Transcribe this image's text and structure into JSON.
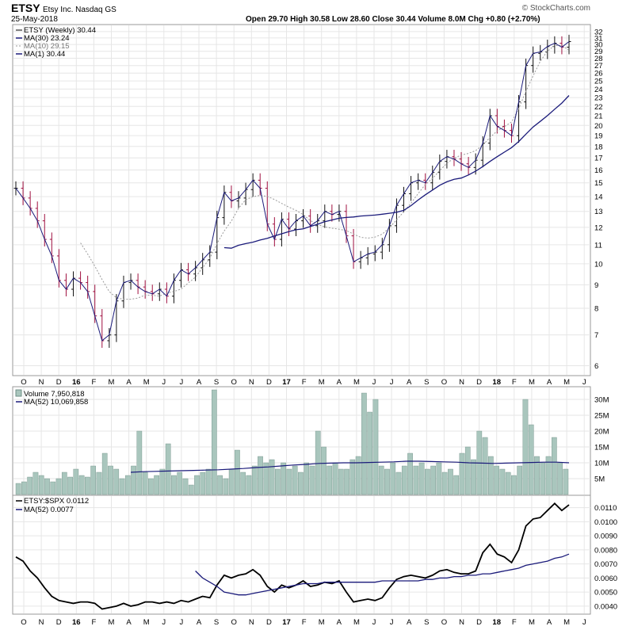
{
  "header": {
    "symbol": "ETSY",
    "company": "Etsy Inc.  Nasdaq GS",
    "date": "25-May-2018",
    "brand": "© StockCharts.com",
    "ohlc": "Open 29.70   High 30.58   Low 28.60   Close 30.44   Volume 8.0M   Chg +0.80 (+2.70%)"
  },
  "colors": {
    "ma": "#1a1a7a",
    "ma_dotted": "#9a9a9a",
    "up": "#111111",
    "down": "#a01040",
    "volume_fill": "#a9c6bd",
    "volume_stroke": "#6f8f86",
    "grid": "#e6e6e6"
  },
  "chart_data": [
    {
      "type": "line",
      "title": "ETSY (Weekly) 30.44",
      "legend": [
        "MA(30) 23.24",
        "MA(10) 29.15",
        "MA(1) 30.44"
      ],
      "x_tick_labels": [
        "O",
        "N",
        "D",
        "16",
        "F",
        "M",
        "A",
        "M",
        "J",
        "J",
        "A",
        "S",
        "O",
        "N",
        "D",
        "17",
        "F",
        "M",
        "A",
        "M",
        "J",
        "J",
        "A",
        "S",
        "O",
        "N",
        "D",
        "18",
        "F",
        "M",
        "A",
        "M",
        "J"
      ],
      "y_ticks": [
        6,
        7,
        8,
        9,
        10,
        11,
        12,
        13,
        14,
        15,
        16,
        17,
        18,
        19,
        20,
        21,
        22,
        23,
        24,
        25,
        26,
        27,
        28,
        29,
        30,
        31,
        32
      ],
      "ylim": [
        5.8,
        32.5
      ],
      "y_scale": "log",
      "grid": true,
      "series": [
        {
          "values": [
            14.6,
            13.9,
            13.2,
            12.4,
            11.3,
            10.4,
            9.2,
            8.8,
            9.3,
            9.1,
            8.7,
            7.7,
            6.8,
            7.0,
            8.3,
            9.1,
            9.2,
            8.9,
            8.7,
            8.6,
            8.8,
            8.5,
            9.2,
            9.7,
            9.5,
            9.8,
            10.2,
            10.6,
            12.6,
            14.3,
            13.7,
            13.9,
            14.5,
            15.2,
            14.6,
            12.2,
            11.3,
            12.5,
            11.9,
            12.4,
            12.7,
            12.1,
            12.4,
            13.0,
            12.8,
            13.0,
            11.5,
            10.1,
            10.3,
            10.5,
            10.6,
            11.0,
            12.1,
            13.4,
            14.2,
            15.0,
            15.2,
            15.0,
            15.8,
            16.7,
            17.1,
            16.9,
            16.5,
            16.2,
            16.8,
            18.3,
            21.0,
            19.9,
            19.5,
            19.0,
            22.5,
            27.0,
            28.7,
            28.9,
            29.7,
            30.2,
            29.6,
            30.44
          ]
        },
        {
          "values": [
            null,
            null,
            null,
            null,
            null,
            null,
            null,
            null,
            null,
            11.1,
            10.5,
            9.88,
            9.24,
            8.7,
            8.43,
            8.37,
            8.37,
            8.42,
            8.55,
            8.54,
            8.5,
            8.64,
            8.7,
            8.81,
            9.08,
            9.35,
            9.8,
            10.28,
            11.06,
            11.79,
            12.38,
            13.2,
            13.79,
            13.99,
            14.09,
            14.01,
            13.8,
            13.53,
            13.28,
            13.07,
            12.79,
            12.41,
            12.18,
            12.03,
            11.95,
            11.89,
            11.81,
            11.6,
            11.42,
            11.37,
            11.43,
            11.6,
            11.97,
            12.46,
            12.97,
            13.54,
            14.21,
            14.87,
            15.33,
            15.95,
            16.54,
            16.98,
            17.24,
            17.38,
            17.63,
            18.12,
            18.83,
            19.46,
            19.88,
            20.34,
            21.75,
            23.71,
            25.64,
            27.57,
            29.03,
            29.85,
            29.86,
            29.15
          ]
        },
        {
          "values": [
            null,
            null,
            null,
            null,
            null,
            null,
            null,
            null,
            null,
            null,
            null,
            null,
            null,
            null,
            null,
            null,
            null,
            null,
            null,
            null,
            null,
            null,
            null,
            null,
            null,
            null,
            null,
            null,
            null,
            10.84,
            10.81,
            10.97,
            11.06,
            11.14,
            11.26,
            11.36,
            11.49,
            11.62,
            11.75,
            11.86,
            11.91,
            12.06,
            12.19,
            12.35,
            12.45,
            12.56,
            12.61,
            12.64,
            12.7,
            12.73,
            12.76,
            12.82,
            12.88,
            12.94,
            13.07,
            13.38,
            13.76,
            14.13,
            14.47,
            14.82,
            15.08,
            15.27,
            15.36,
            15.6,
            15.9,
            16.27,
            16.7,
            17.1,
            17.49,
            17.89,
            18.45,
            19.14,
            19.85,
            20.41,
            21.01,
            21.69,
            22.37,
            23.24
          ]
        }
      ]
    },
    {
      "type": "bar",
      "title": "Volume 7,950,818",
      "legend": [
        "MA(52) 10,069,858"
      ],
      "y_tick_labels": [
        "5M",
        "10M",
        "15M",
        "20M",
        "25M",
        "30M"
      ],
      "ylim": [
        0,
        33
      ],
      "unit": "M",
      "values": [
        3.5,
        4,
        5.5,
        7,
        6,
        5,
        4,
        5,
        7,
        5.5,
        8,
        6,
        5.5,
        9,
        7,
        13,
        9,
        8,
        5,
        6,
        9,
        20,
        7,
        5,
        6,
        8,
        16,
        6,
        7,
        5,
        3,
        6,
        7,
        8,
        33,
        6,
        5,
        8,
        14,
        7,
        6,
        9,
        12,
        10,
        11,
        8,
        10,
        8,
        9,
        7,
        10,
        9,
        20,
        15,
        9,
        10,
        8,
        8,
        11,
        12,
        32,
        26,
        30,
        9,
        8,
        10,
        7,
        9,
        13,
        9,
        10,
        8,
        9,
        10,
        7,
        8,
        6,
        13,
        15,
        11,
        20,
        18,
        12,
        9,
        8,
        7,
        6,
        9,
        30,
        22,
        12,
        10,
        12,
        18,
        10,
        8
      ],
      "ma_values": [
        7,
        7.2,
        7.3,
        7.4,
        7.5,
        7.6,
        7.7,
        7.8,
        8.0,
        8.2,
        8.5,
        8.7,
        9.0,
        9.3,
        9.5,
        9.8,
        9.9,
        10.0,
        10.0,
        10.1,
        10.2,
        10.3,
        10.5,
        10.5,
        10.4,
        10.3,
        10.2,
        10.0,
        9.9,
        9.8,
        9.9,
        10.0,
        10.1,
        10.2,
        10.2,
        10.0
      ]
    },
    {
      "type": "line",
      "title": "ETSY:$SPX 0.0112",
      "legend": [
        "MA(52) 0.0077"
      ],
      "y_tick_labels": [
        "0.0040",
        "0.0050",
        "0.0060",
        "0.0070",
        "0.0080",
        "0.0090",
        "0.0100",
        "0.0110"
      ],
      "ylim": [
        0.0036,
        0.0116
      ],
      "series": [
        {
          "values": [
            0.0075,
            0.0072,
            0.0065,
            0.006,
            0.0053,
            0.0047,
            0.0044,
            0.0043,
            0.0042,
            0.0043,
            0.0043,
            0.0042,
            0.0038,
            0.0039,
            0.004,
            0.0042,
            0.004,
            0.0041,
            0.0043,
            0.0043,
            0.0042,
            0.0043,
            0.0042,
            0.0044,
            0.0043,
            0.0045,
            0.0047,
            0.0046,
            0.0055,
            0.0062,
            0.006,
            0.0062,
            0.0063,
            0.0066,
            0.0062,
            0.0054,
            0.005,
            0.0055,
            0.0053,
            0.0055,
            0.0058,
            0.0054,
            0.0055,
            0.0057,
            0.0056,
            0.0058,
            0.005,
            0.0043,
            0.0044,
            0.0045,
            0.0044,
            0.0046,
            0.0053,
            0.0059,
            0.0061,
            0.0062,
            0.0061,
            0.006,
            0.0062,
            0.0065,
            0.0066,
            0.0064,
            0.0063,
            0.0063,
            0.0065,
            0.0078,
            0.0084,
            0.0077,
            0.0075,
            0.0071,
            0.008,
            0.0097,
            0.0102,
            0.0103,
            0.0108,
            0.0113,
            0.0108,
            0.0112
          ]
        },
        {
          "values": [
            null,
            null,
            null,
            null,
            null,
            null,
            null,
            null,
            null,
            null,
            null,
            null,
            null,
            null,
            null,
            null,
            null,
            null,
            null,
            null,
            null,
            null,
            null,
            null,
            null,
            0.0065,
            0.006,
            0.0057,
            0.0054,
            0.005,
            0.0049,
            0.0048,
            0.0048,
            0.0049,
            0.005,
            0.0051,
            0.0052,
            0.0053,
            0.0054,
            0.0055,
            0.0056,
            0.0056,
            0.0056,
            0.0057,
            0.0057,
            0.0057,
            0.0057,
            0.0057,
            0.0057,
            0.0057,
            0.0057,
            0.0058,
            0.0058,
            0.0058,
            0.0058,
            0.0058,
            0.0058,
            0.0059,
            0.0059,
            0.006,
            0.006,
            0.0061,
            0.0061,
            0.0062,
            0.0062,
            0.0063,
            0.0063,
            0.0064,
            0.0065,
            0.0066,
            0.0067,
            0.0069,
            0.007,
            0.0071,
            0.0072,
            0.0074,
            0.0075,
            0.0077
          ]
        }
      ]
    }
  ]
}
